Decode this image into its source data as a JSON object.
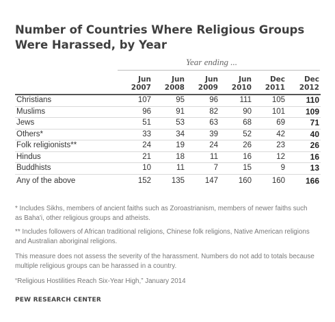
{
  "chart_data": {
    "type": "table",
    "title": "Number of Countries Where Religious Groups Were Harassed, by Year",
    "subtitle": "Year ending ...",
    "columns": [
      {
        "month": "Jun",
        "year": "2007"
      },
      {
        "month": "Jun",
        "year": "2008"
      },
      {
        "month": "Jun",
        "year": "2009"
      },
      {
        "month": "Jun",
        "year": "2010"
      },
      {
        "month": "Dec",
        "year": "2011"
      },
      {
        "month": "Dec",
        "year": "2012"
      }
    ],
    "rows": [
      {
        "label": "Christians",
        "values": [
          107,
          95,
          96,
          111,
          105,
          110
        ]
      },
      {
        "label": "Muslims",
        "values": [
          96,
          91,
          82,
          90,
          101,
          109
        ]
      },
      {
        "label": "Jews",
        "values": [
          51,
          53,
          63,
          68,
          69,
          71
        ]
      },
      {
        "label": "Others*",
        "values": [
          33,
          34,
          39,
          52,
          42,
          40
        ]
      },
      {
        "label": "Folk religionists**",
        "values": [
          24,
          19,
          24,
          26,
          23,
          26
        ]
      },
      {
        "label": "Hindus",
        "values": [
          21,
          18,
          11,
          16,
          12,
          16
        ]
      },
      {
        "label": "Buddhists",
        "values": [
          10,
          11,
          7,
          15,
          9,
          13
        ]
      },
      {
        "label": "Any of the above",
        "values": [
          152,
          135,
          147,
          160,
          160,
          166
        ]
      }
    ]
  },
  "notes": {
    "note1": "* Includes Sikhs, members of ancient faiths such as Zoroastrianism, members of newer faiths such as Baha'i, other religious groups and atheists.",
    "note2": "** Includes followers of African traditional religions, Chinese folk religions, Native American religions and Australian aboriginal religions.",
    "note3": "This measure does not assess the severity of the harassment. Numbers do not add to totals because multiple religious groups can be harassed in a country.",
    "citation": "“Religious Hostilities Reach Six-Year High,” January 2014"
  },
  "source": "PEW RESEARCH CENTER"
}
